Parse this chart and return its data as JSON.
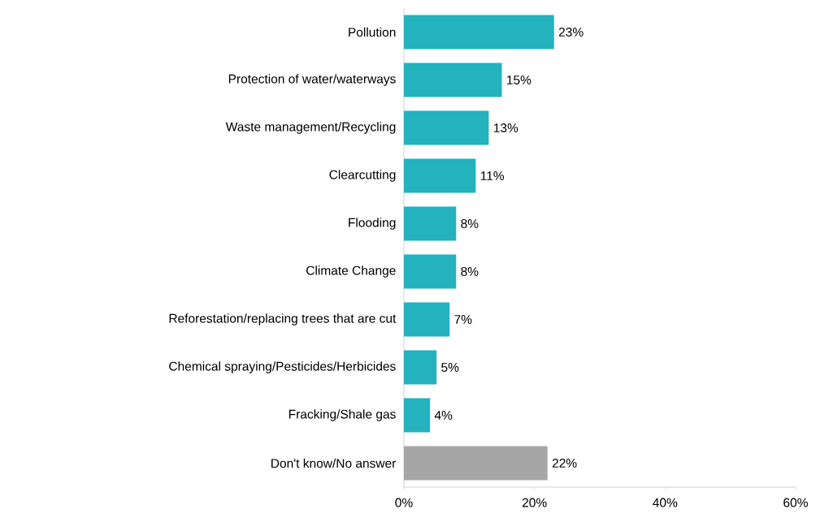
{
  "chart_data": {
    "type": "bar",
    "orientation": "horizontal",
    "categories": [
      "Pollution",
      "Protection of water/waterways",
      "Waste management/Recycling",
      "Clearcutting",
      "Flooding",
      "Climate Change",
      "Reforestation/replacing trees that are cut",
      "Chemical spraying/Pesticides/Herbicides",
      "Fracking/Shale gas",
      "Don't know/No answer"
    ],
    "values": [
      23,
      15,
      13,
      11,
      8,
      8,
      7,
      5,
      4,
      22
    ],
    "value_labels": [
      "23%",
      "15%",
      "13%",
      "11%",
      "8%",
      "8%",
      "7%",
      "5%",
      "4%",
      "22%"
    ],
    "colors": [
      "#23b2be",
      "#23b2be",
      "#23b2be",
      "#23b2be",
      "#23b2be",
      "#23b2be",
      "#23b2be",
      "#23b2be",
      "#23b2be",
      "#a6a6a6"
    ],
    "xlim": [
      0,
      60
    ],
    "xticks": [
      {
        "value": 0,
        "label": "0%"
      },
      {
        "value": 20,
        "label": "20%"
      },
      {
        "value": 40,
        "label": "40%"
      },
      {
        "value": 60,
        "label": "60%"
      }
    ]
  }
}
